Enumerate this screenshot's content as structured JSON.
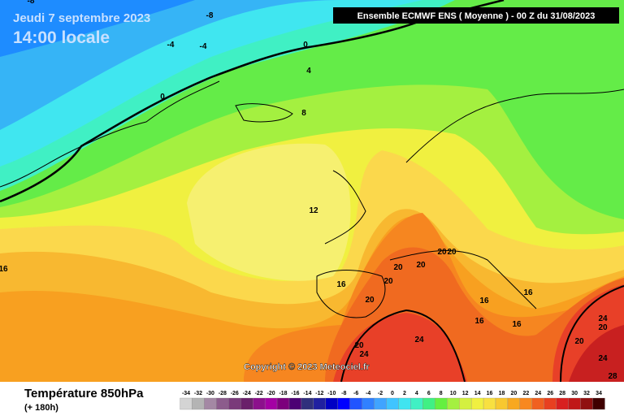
{
  "header": {
    "date": "Jeudi 7 septembre 2023",
    "time": "14:00 locale",
    "model_run": "Ensemble ECMWF ENS  ( Moyenne )  -  00 Z du 31/08/2023"
  },
  "copyright": "Copyright © 2023 Meteociel.fr",
  "footer": {
    "title": "Température 850hPa",
    "subtitle": "(+ 180h)"
  },
  "legend": {
    "labels": [
      -34,
      -32,
      -30,
      -28,
      -26,
      -24,
      -22,
      -20,
      -18,
      -16,
      -14,
      -12,
      -10,
      -8,
      -6,
      -4,
      -2,
      0,
      2,
      4,
      6,
      8,
      10,
      12,
      14,
      16,
      18,
      20,
      22,
      24,
      26,
      28,
      30,
      32,
      34
    ],
    "colors": [
      "#d4d4d4",
      "#b4b4b4",
      "#a488a4",
      "#8c5c8c",
      "#7a3a7a",
      "#6a206a",
      "#8c108c",
      "#a400a4",
      "#7c007c",
      "#4c0074",
      "#30307c",
      "#2020a0",
      "#0000c4",
      "#0000ff",
      "#2054ff",
      "#3080ff",
      "#40a4ff",
      "#40c4ff",
      "#40e4f0",
      "#40f0c4",
      "#40f084",
      "#64f040",
      "#a4f040",
      "#d4f040",
      "#f0f040",
      "#f8e040",
      "#f8c830",
      "#f8a820",
      "#f88820",
      "#f06020",
      "#e84020",
      "#d82020",
      "#c01818",
      "#901010",
      "#400000"
    ]
  },
  "contour_labels": [
    -8,
    -8,
    -4,
    -4,
    0,
    0,
    4,
    8,
    12,
    16,
    16,
    20,
    20,
    20,
    20,
    20,
    20,
    16,
    16,
    16,
    16,
    24,
    20,
    20,
    24,
    20,
    24,
    24,
    28
  ]
}
